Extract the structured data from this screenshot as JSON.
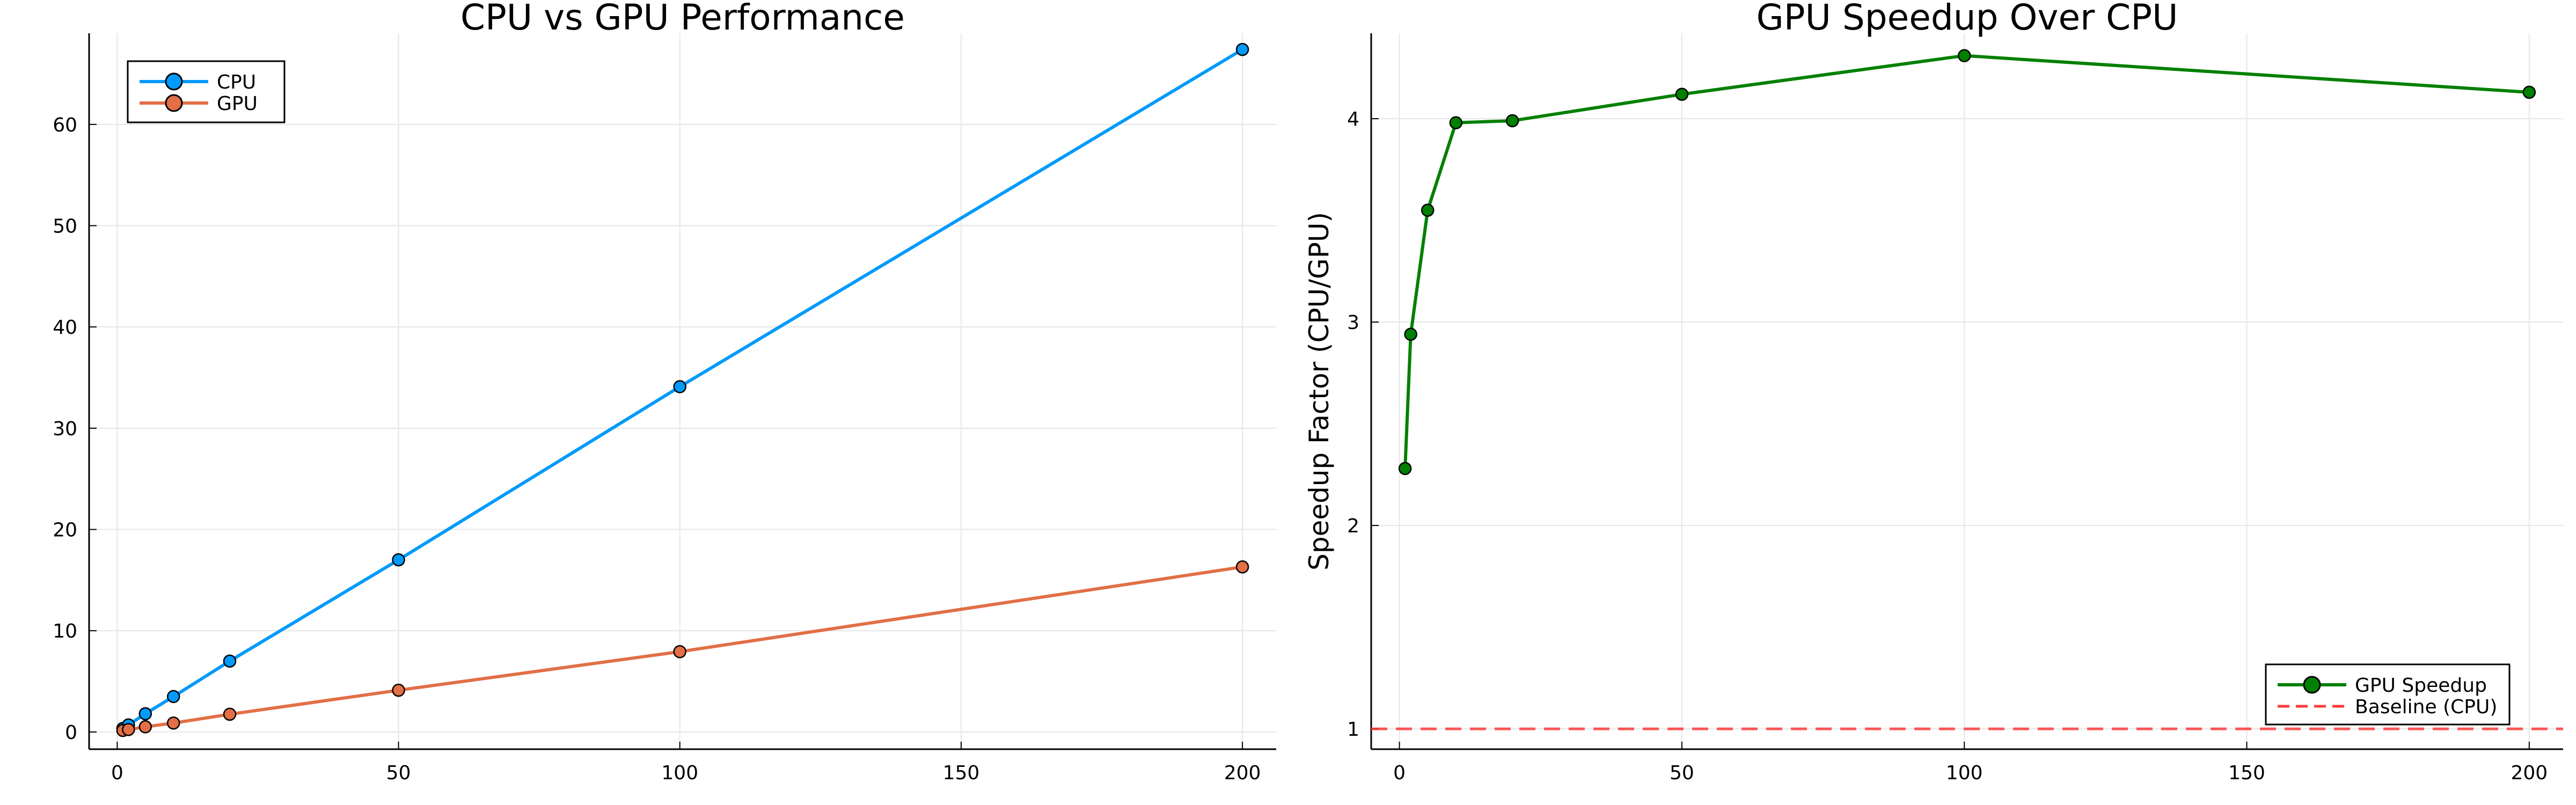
{
  "chart_data": [
    {
      "type": "line",
      "title": "CPU vs GPU Performance",
      "xlabel": "",
      "ylabel": "",
      "xlim": [
        -5,
        206
      ],
      "ylim": [
        -1.7,
        69
      ],
      "xticks": [
        0,
        50,
        100,
        150,
        200
      ],
      "yticks": [
        0,
        10,
        20,
        30,
        40,
        50,
        60
      ],
      "grid": true,
      "legend_position": "top-left",
      "x": [
        1,
        2,
        5,
        10,
        20,
        50,
        100,
        200
      ],
      "series": [
        {
          "name": "CPU",
          "color": "#009AFA",
          "values": [
            0.35,
            0.7,
            1.8,
            3.5,
            7.0,
            17.0,
            34.1,
            67.4
          ]
        },
        {
          "name": "GPU",
          "color": "#E26F46",
          "values": [
            0.15,
            0.24,
            0.51,
            0.88,
            1.75,
            4.12,
            7.93,
            16.3
          ]
        }
      ]
    },
    {
      "type": "line",
      "title": "GPU Speedup Over CPU",
      "xlabel": "",
      "ylabel": "Speedup Factor (CPU/GPU)",
      "xlim": [
        -5,
        206
      ],
      "ylim": [
        0.9,
        4.42
      ],
      "xticks": [
        0,
        50,
        100,
        150,
        200
      ],
      "yticks": [
        1,
        2,
        3,
        4
      ],
      "grid": true,
      "legend_position": "bottom-right",
      "x": [
        1,
        2,
        5,
        10,
        20,
        50,
        100,
        200
      ],
      "series": [
        {
          "name": "GPU Speedup",
          "color": "#008000",
          "values": [
            2.28,
            2.94,
            3.55,
            3.98,
            3.99,
            4.12,
            4.31,
            4.13
          ]
        },
        {
          "name": "Baseline (CPU)",
          "color": "#FF3B3B",
          "style": "dashed",
          "constant": 1
        }
      ]
    }
  ]
}
